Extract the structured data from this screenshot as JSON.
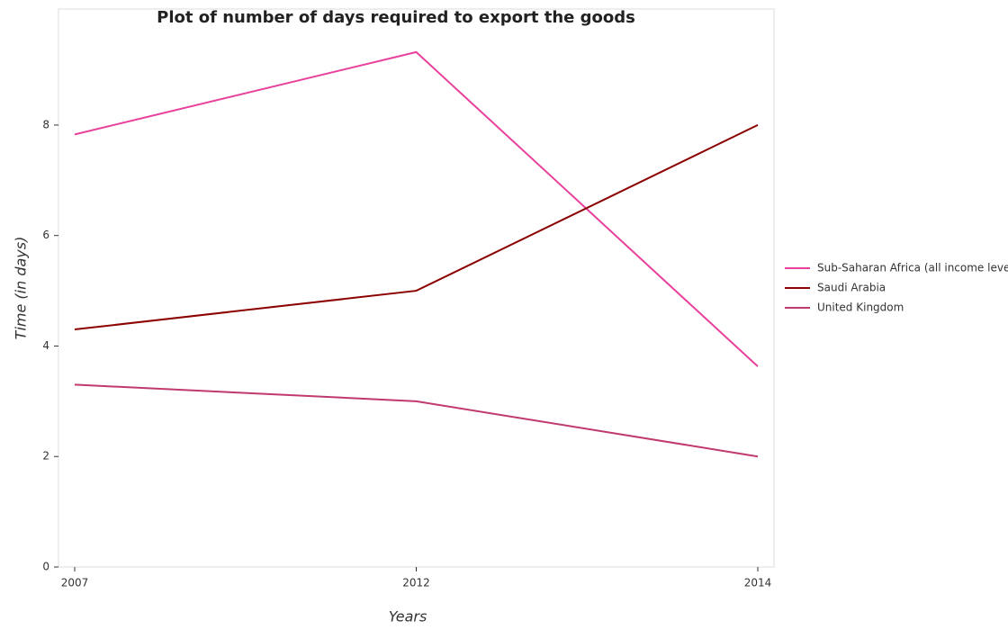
{
  "chart_data": {
    "type": "line",
    "title": "Plot of number of days required to export the goods",
    "x_label": "Years",
    "y_label": "Time (in days)",
    "categories": [
      "2007",
      "2012",
      "2014"
    ],
    "series": [
      {
        "name": "Sub-Saharan Africa (all income levels)",
        "color": "#e8409b",
        "values": [
          7.83,
          9.32,
          3.63
        ]
      },
      {
        "name": "Saudi Arabia",
        "color": "#8b0000",
        "values": [
          4.3,
          5.0,
          8.0
        ]
      },
      {
        "name": "United Kingdom",
        "color": "#c03a6f",
        "values": [
          3.3,
          3.0,
          2.0
        ]
      }
    ],
    "ylim": [
      0,
      10.1
    ],
    "yticks": [
      0,
      2,
      4,
      6,
      8
    ],
    "legend": "right"
  }
}
